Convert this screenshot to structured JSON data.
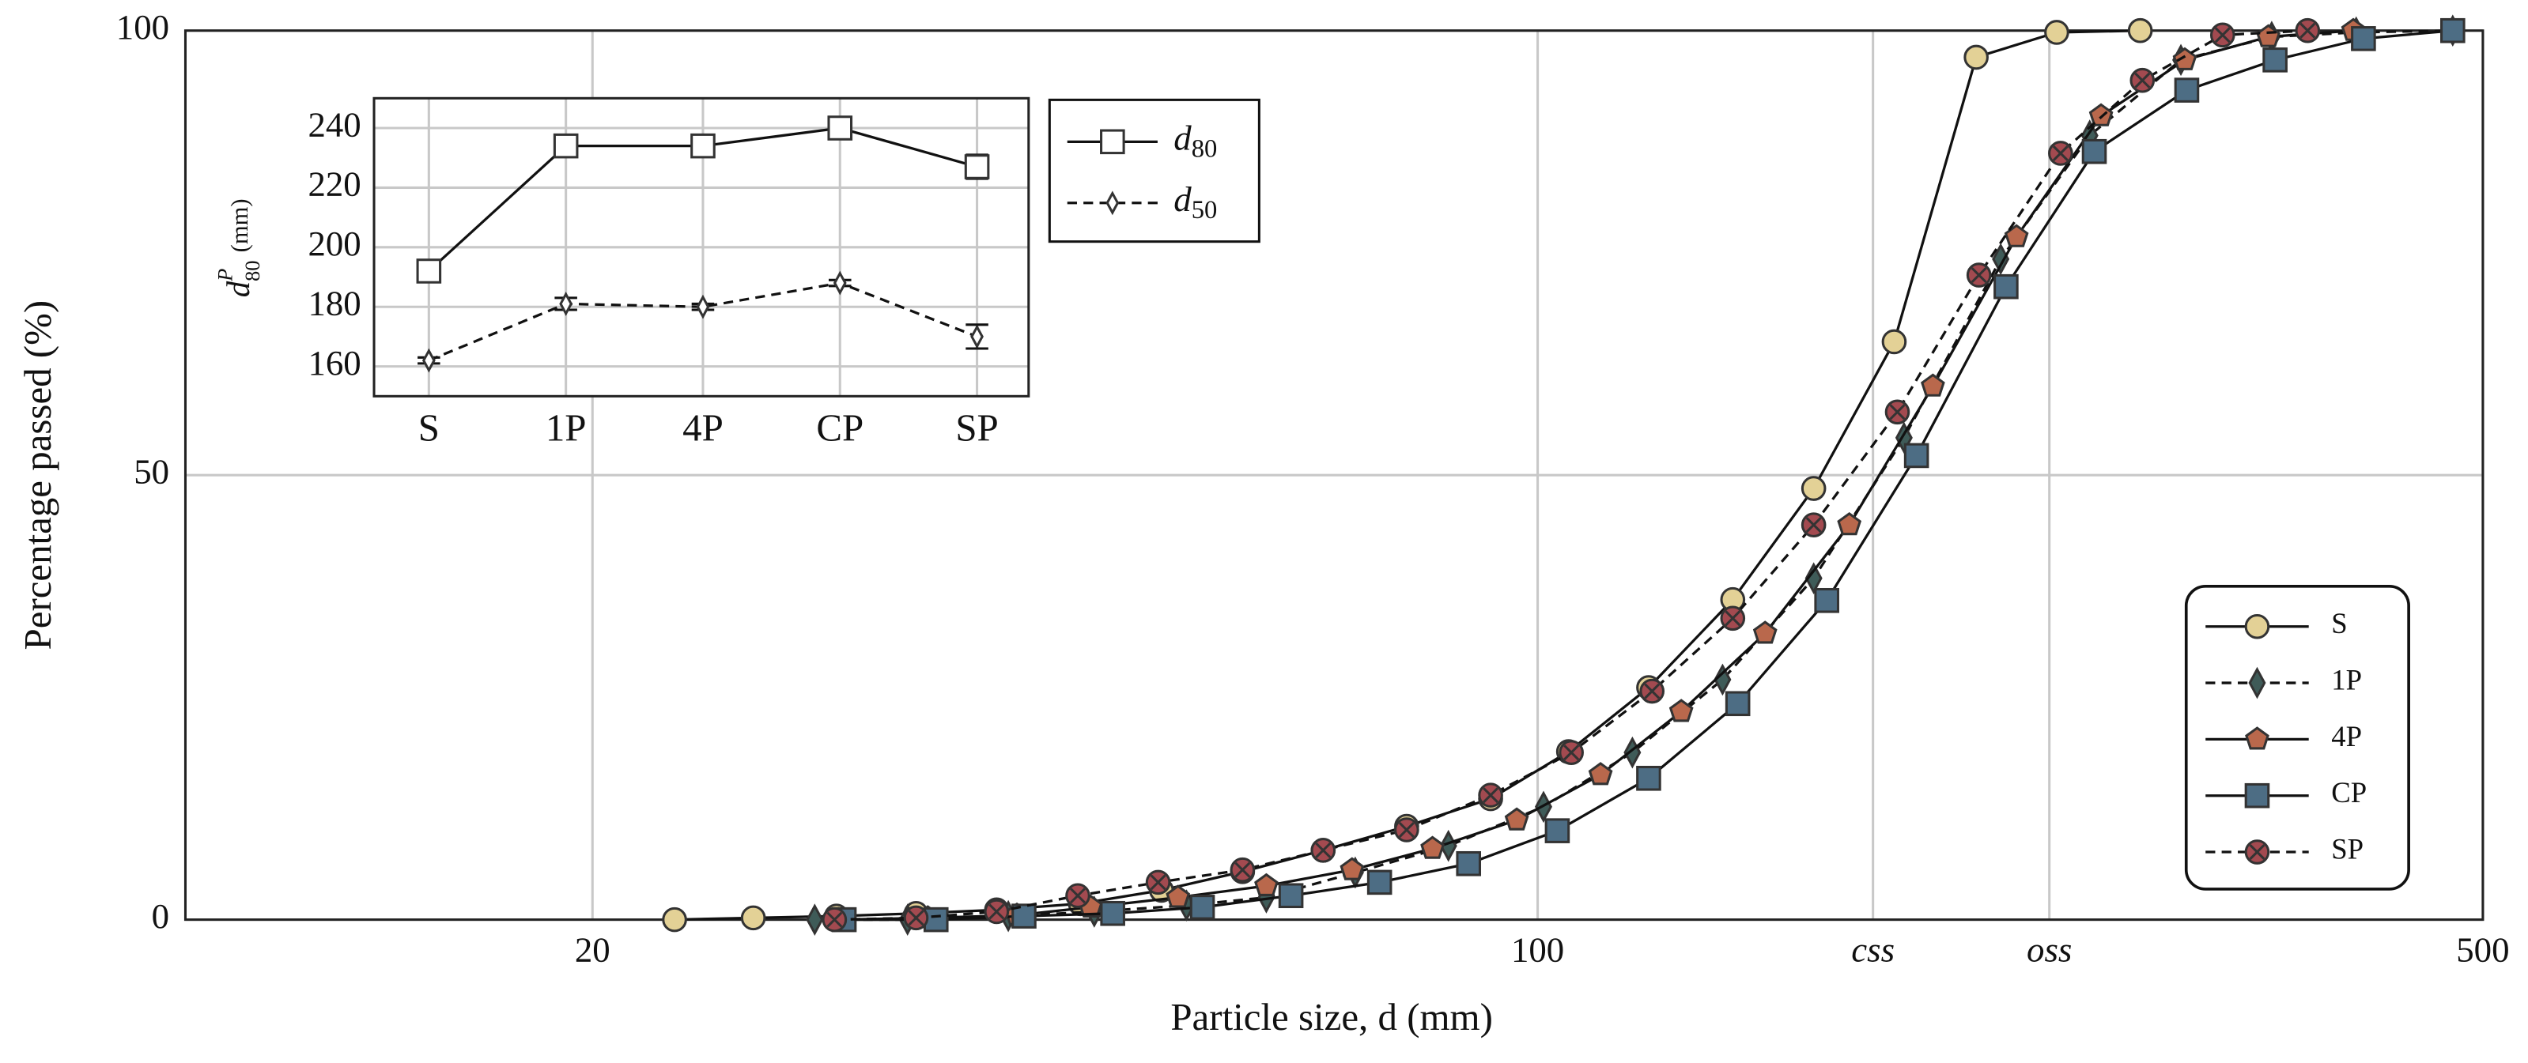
{
  "chart_data": [
    {
      "type": "line",
      "xlabel": "Particle size, d (mm)",
      "ylabel": "Percentage passed (%)",
      "xscale": "log",
      "xlim": [
        10,
        500
      ],
      "ylim": [
        0,
        100
      ],
      "xticks": [
        20,
        100,
        500,
        {
          "value": 177,
          "label": "css"
        },
        {
          "value": 239,
          "label": "oss"
        }
      ],
      "yticks": [
        0,
        50,
        100
      ],
      "grid": true,
      "legend": "lower right",
      "series": [
        {
          "name": "S",
          "color": "#e3d196",
          "marker": "circle",
          "dash": false,
          "x": [
            23,
            26.3,
            30.3,
            34.7,
            39.8,
            45.9,
            52.7,
            60.5,
            69.4,
            80,
            92.3,
            105.4,
            120.8,
            139.4,
            160,
            183.5,
            211,
            242,
            279
          ],
          "values": [
            0,
            0.2,
            0.4,
            0.7,
            1.1,
            1.8,
            3.3,
            5.4,
            7.8,
            10.5,
            13.6,
            18.9,
            26.1,
            36,
            48.5,
            65,
            97,
            99.8,
            100
          ]
        },
        {
          "name": "1P",
          "color": "#3f5b58",
          "marker": "diamond",
          "dash": true,
          "x": [
            29.2,
            34.2,
            40.6,
            47,
            55,
            63,
            73.3,
            85.9,
            101,
            117.5,
            137,
            160,
            186.6,
            220,
            256,
            299,
            349,
            403,
            475
          ],
          "values": [
            0,
            0,
            0.4,
            0.9,
            1.6,
            2.5,
            5.3,
            8.3,
            12.7,
            18.8,
            27,
            38.4,
            54.2,
            74.3,
            88.2,
            96.7,
            99.3,
            99.8,
            100
          ]
        },
        {
          "name": "4P",
          "color": "#b9684c",
          "marker": "pentagon",
          "dash": false,
          "x": [
            30.4,
            35.4,
            41.2,
            46.7,
            54.2,
            63,
            72.9,
            83.6,
            96.5,
            111.3,
            127.7,
            147.3,
            170,
            196,
            226,
            261,
            301,
            347,
            401
          ],
          "values": [
            0,
            0.2,
            0.5,
            1.4,
            2.5,
            3.8,
            5.6,
            8,
            11.2,
            16.3,
            23.4,
            32.2,
            44.4,
            60,
            76.8,
            90.4,
            96.7,
            99.3,
            100
          ]
        },
        {
          "name": "CP",
          "color": "#4d6d84",
          "marker": "square",
          "dash": false,
          "x": [
            30.7,
            35.9,
            41.7,
            48.5,
            56.5,
            65.7,
            76.4,
            88.9,
            103.4,
            120.8,
            140.6,
            163.6,
            190.6,
            222,
            258,
            302,
            351,
            408,
            475
          ],
          "values": [
            0,
            0,
            0.4,
            0.7,
            1.4,
            2.7,
            4.2,
            6.3,
            10,
            15.9,
            24.3,
            35.9,
            52.2,
            71.2,
            86.4,
            93.3,
            96.7,
            99.1,
            100
          ]
        },
        {
          "name": "SP",
          "color": "#a34a50",
          "marker": "circlex",
          "dash": true,
          "x": [
            30.2,
            34.7,
            39.8,
            45.7,
            52.4,
            60.5,
            69.4,
            80,
            92.3,
            105.9,
            121.5,
            139.4,
            160,
            184.5,
            212,
            243.6,
            280,
            321,
            371
          ],
          "values": [
            0,
            0.2,
            0.9,
            2.7,
            4.2,
            5.6,
            7.8,
            10.1,
            14,
            18.8,
            25.7,
            33.9,
            44.4,
            57.1,
            72.5,
            86.2,
            94.4,
            99.5,
            100
          ]
        }
      ]
    },
    {
      "type": "line",
      "ylabel": "d",
      "ylabel_sup": "P",
      "ylabel_sub": "80",
      "ylabel_unit": "(mm)",
      "categories": [
        "S",
        "1P",
        "4P",
        "CP",
        "SP"
      ],
      "ylim": [
        150,
        250
      ],
      "yticks": [
        160,
        180,
        200,
        220,
        240
      ],
      "grid": true,
      "legend": "outside right",
      "series": [
        {
          "name": "d",
          "subscript": "80",
          "color": "#444444",
          "marker": "square",
          "dash": false,
          "values": [
            192,
            234,
            234,
            240,
            227
          ],
          "errors": [
            1,
            2,
            2,
            2,
            4
          ]
        },
        {
          "name": "d",
          "subscript": "50",
          "color": "#444444",
          "marker": "diamond",
          "dash": true,
          "values": [
            162,
            181,
            180,
            188,
            170
          ],
          "errors": [
            1,
            2,
            1,
            1,
            4
          ]
        }
      ]
    }
  ]
}
